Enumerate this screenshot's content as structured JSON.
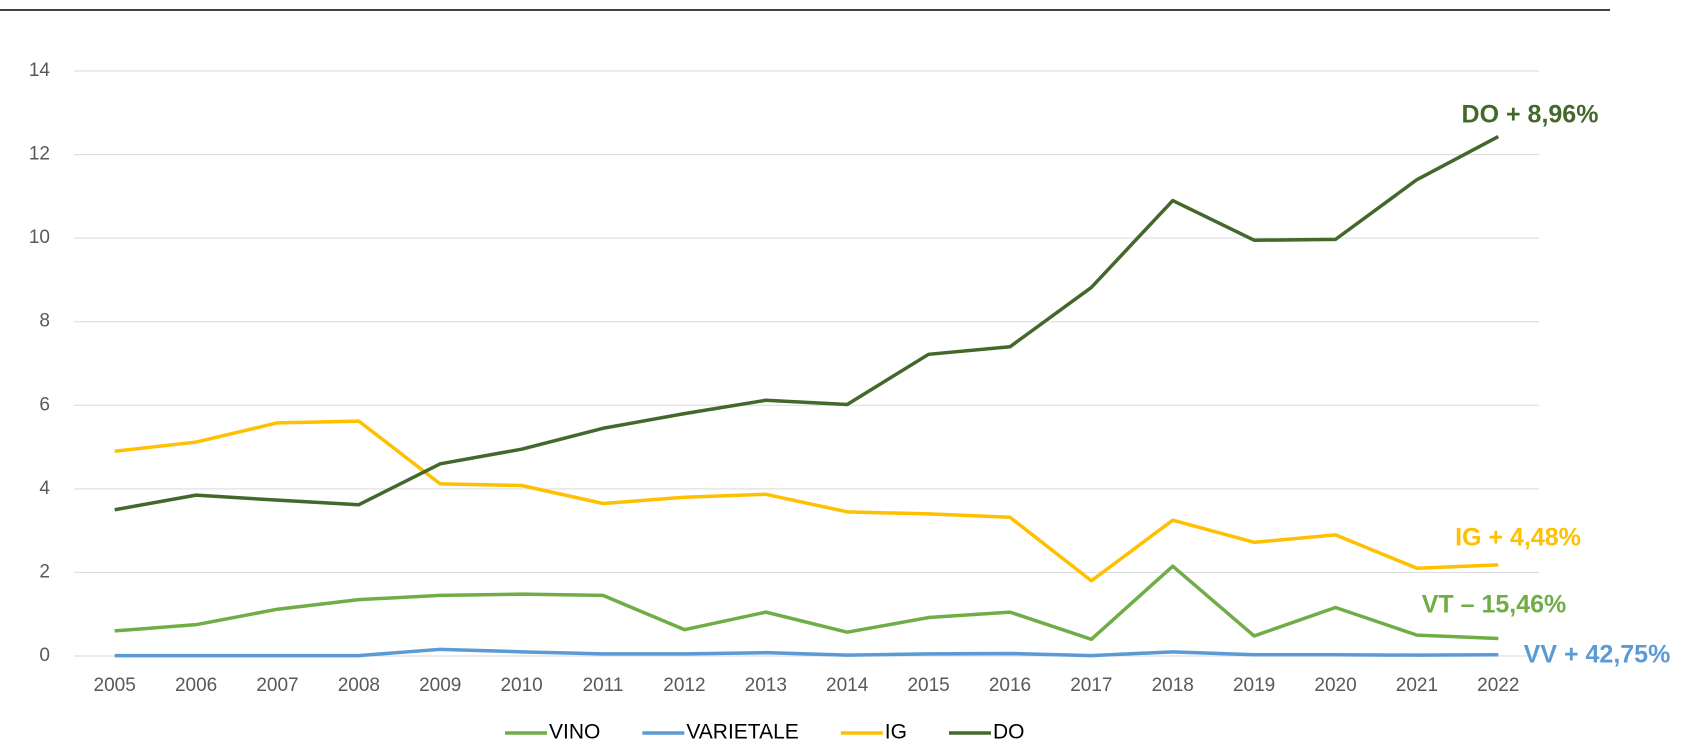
{
  "chart_data": {
    "type": "line",
    "categories": [
      "2005",
      "2006",
      "2007",
      "2008",
      "2009",
      "2010",
      "2011",
      "2012",
      "2013",
      "2014",
      "2015",
      "2016",
      "2017",
      "2018",
      "2019",
      "2020",
      "2021",
      "2022"
    ],
    "series": [
      {
        "name": "VINO",
        "color": "#70ad47",
        "values": [
          0.6,
          0.75,
          1.12,
          1.35,
          1.45,
          1.48,
          1.45,
          0.63,
          1.05,
          0.57,
          0.92,
          1.05,
          0.4,
          2.15,
          0.48,
          1.16,
          0.5,
          0.42
        ]
      },
      {
        "name": "VARIETALE",
        "color": "#5b9bd5",
        "values": [
          0.01,
          0.01,
          0.01,
          0.01,
          0.16,
          0.1,
          0.05,
          0.05,
          0.08,
          0.02,
          0.05,
          0.06,
          0.01,
          0.1,
          0.03,
          0.03,
          0.02,
          0.03
        ]
      },
      {
        "name": "IG",
        "color": "#ffc000",
        "values": [
          4.9,
          5.12,
          5.58,
          5.62,
          4.12,
          4.08,
          3.65,
          3.8,
          3.87,
          3.45,
          3.4,
          3.32,
          1.8,
          3.25,
          2.72,
          2.9,
          2.1,
          2.18
        ]
      },
      {
        "name": "DO",
        "color": "#43682b",
        "values": [
          3.5,
          3.85,
          3.73,
          3.62,
          4.6,
          4.95,
          5.45,
          5.8,
          6.12,
          6.02,
          7.22,
          7.4,
          8.82,
          10.9,
          9.95,
          9.97,
          11.4,
          12.43
        ]
      }
    ],
    "annotations": [
      {
        "text": "DO + 8,96%",
        "color": "#43682b"
      },
      {
        "text": "IG + 4,48%",
        "color": "#ffc000"
      },
      {
        "text": "VT – 15,46%",
        "color": "#70ad47"
      },
      {
        "text": "VV + 42,75%",
        "color": "#5b9bd5"
      }
    ],
    "ylim": [
      0,
      14
    ],
    "yticks": [
      0,
      2,
      4,
      6,
      8,
      10,
      12,
      14
    ],
    "grid": true,
    "legend": "bottom"
  }
}
